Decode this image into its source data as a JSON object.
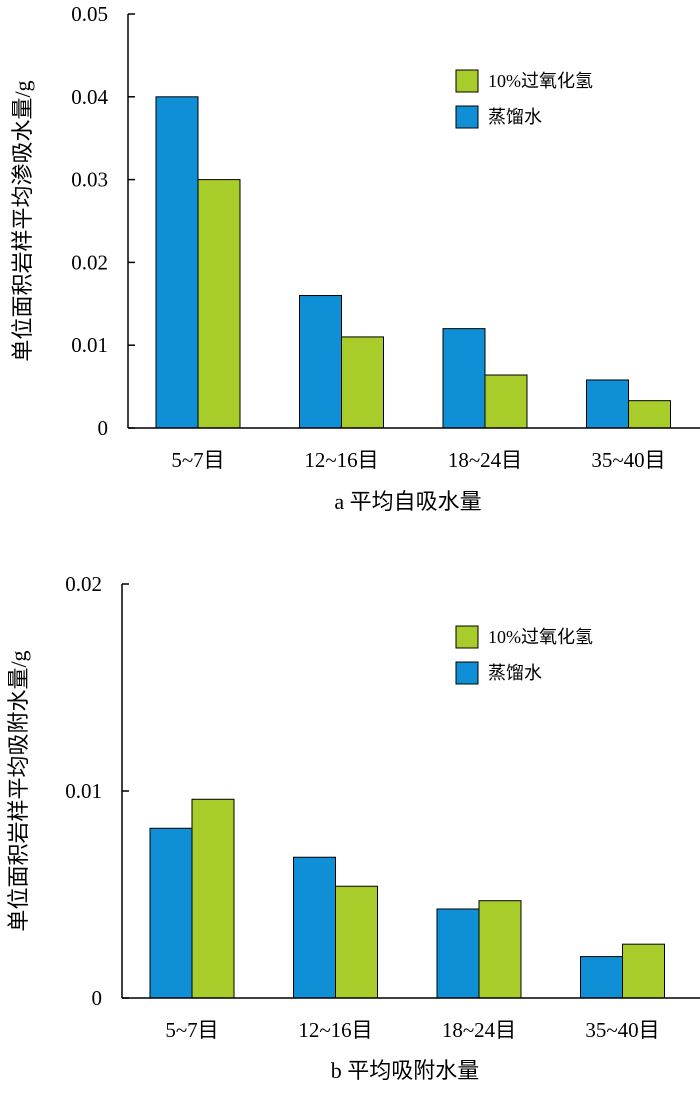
{
  "chart_data": [
    {
      "type": "bar",
      "title": "",
      "xlabel": "a  平均自吸水量",
      "ylabel": "单位面积岩样平均渗吸水量/g",
      "categories": [
        "5~7目",
        "12~16目",
        "18~24目",
        "35~40目"
      ],
      "ylim": [
        0,
        0.05
      ],
      "yticks": [
        "0",
        "0.01",
        "0.02",
        "0.03",
        "0.04",
        "0.05"
      ],
      "ytick_values": [
        0,
        0.01,
        0.02,
        0.03,
        0.04,
        0.05
      ],
      "legend_position": "top-right",
      "series": [
        {
          "name": "蒸馏水",
          "color": "#0f8fd6",
          "values": [
            0.04,
            0.016,
            0.012,
            0.0058
          ]
        },
        {
          "name": "10%过氧化氢",
          "color": "#a8cc2a",
          "values": [
            0.03,
            0.011,
            0.0064,
            0.0033
          ]
        }
      ],
      "legend_order": [
        1,
        0
      ]
    },
    {
      "type": "bar",
      "title": "",
      "xlabel": "b  平均吸附水量",
      "ylabel": "单位面积岩样平均吸附水量/g",
      "categories": [
        "5~7目",
        "12~16目",
        "18~24目",
        "35~40目"
      ],
      "ylim": [
        0,
        0.02
      ],
      "yticks": [
        "0",
        "0.01",
        "0.02"
      ],
      "ytick_values": [
        0,
        0.01,
        0.02
      ],
      "legend_position": "top-right",
      "series": [
        {
          "name": "蒸馏水",
          "color": "#0f8fd6",
          "values": [
            0.0082,
            0.0068,
            0.0043,
            0.002
          ]
        },
        {
          "name": "10%过氧化氢",
          "color": "#a8cc2a",
          "values": [
            0.0096,
            0.0054,
            0.0047,
            0.0026
          ]
        }
      ],
      "legend_order": [
        1,
        0
      ]
    }
  ]
}
